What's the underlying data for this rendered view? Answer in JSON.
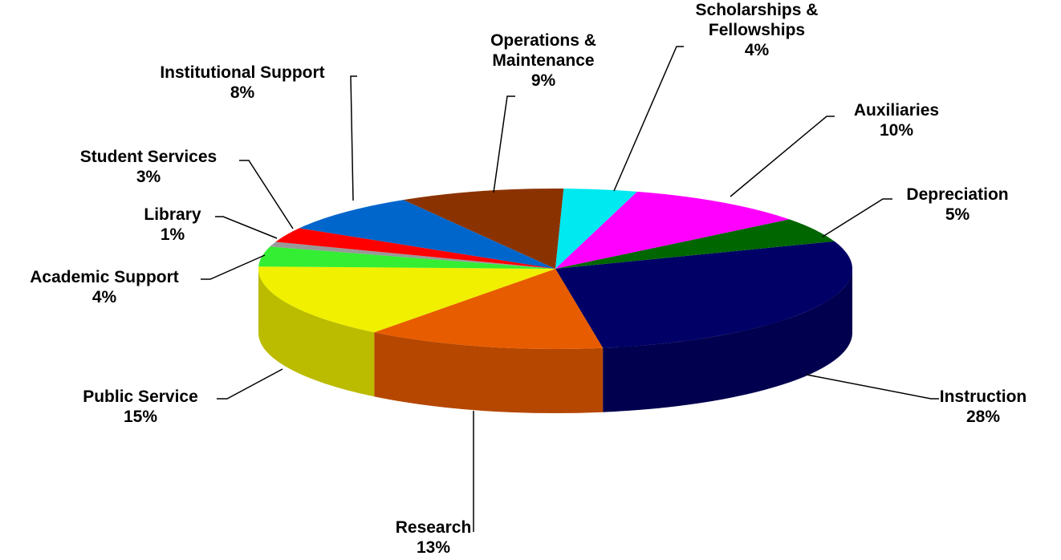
{
  "chart_data": {
    "type": "pie3d",
    "categories": [
      "Instruction",
      "Research",
      "Public Service",
      "Academic Support",
      "Library",
      "Student Services",
      "Institutional Support",
      "Operations & Maintenance",
      "Scholarships & Fellowships",
      "Auxiliaries",
      "Depreciation"
    ],
    "values": [
      28,
      13,
      15,
      4,
      1,
      3,
      8,
      9,
      4,
      10,
      5
    ],
    "value_labels": [
      "28%",
      "13%",
      "15%",
      "4%",
      "1%",
      "3%",
      "8%",
      "9%",
      "4%",
      "10%",
      "5%"
    ],
    "colors": [
      "#000066",
      "#e85c00",
      "#f0f000",
      "#33ee33",
      "#999999",
      "#ff0000",
      "#0066cc",
      "#8b3300",
      "#00e8f0",
      "#ff00ff",
      "#006600"
    ]
  }
}
